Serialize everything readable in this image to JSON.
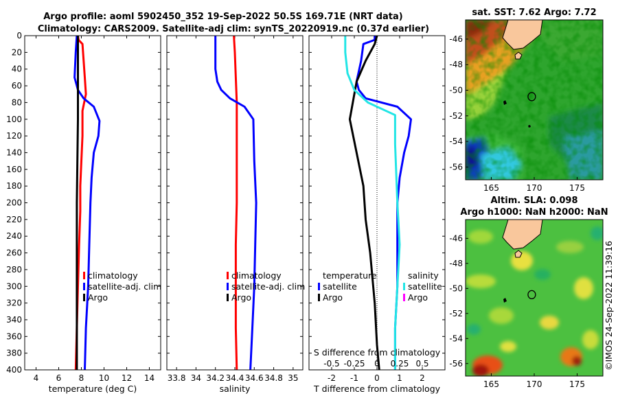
{
  "figure": {
    "title_line1": "Argo profile: aoml 5902450_352 19-Sep-2022 50.5S 169.71E (NRT data)",
    "title_line2": "Climatology: CARS2009. Satellite-adj clim: synTS_20220919.nc (0.37d earlier)",
    "credit": "©IMOS 24-Sep-2022 11:39:16"
  },
  "colors": {
    "climatology": "#ff0000",
    "satellite": "#0000ff",
    "argo": "#000000",
    "sal_satellite": "#22e5e5",
    "sal_argo": "#ff00ff"
  },
  "chart_data": [
    {
      "type": "line",
      "id": "temperature",
      "xlabel": "temperature (deg C)",
      "ylabel": "",
      "xlim": [
        3,
        15
      ],
      "ylim": [
        0,
        400
      ],
      "xticks": [
        4,
        6,
        8,
        10,
        12,
        14
      ],
      "yticks": [
        0,
        20,
        40,
        60,
        80,
        100,
        120,
        140,
        160,
        180,
        200,
        220,
        240,
        260,
        280,
        300,
        320,
        340,
        360,
        380,
        400
      ],
      "legend": [
        "climatology",
        "satellite-adj. clim",
        "Argo"
      ],
      "series": [
        {
          "name": "climatology",
          "color": "climatology",
          "points": [
            [
              7.7,
              0
            ],
            [
              7.75,
              5
            ],
            [
              8.1,
              10
            ],
            [
              8.2,
              30
            ],
            [
              8.3,
              50
            ],
            [
              8.4,
              70
            ],
            [
              8.1,
              90
            ],
            [
              8.1,
              120
            ],
            [
              8.0,
              150
            ],
            [
              7.9,
              180
            ],
            [
              7.9,
              210
            ],
            [
              7.8,
              250
            ],
            [
              7.7,
              300
            ],
            [
              7.6,
              350
            ],
            [
              7.5,
              400
            ]
          ]
        },
        {
          "name": "satellite-adj. clim",
          "color": "satellite",
          "points": [
            [
              7.6,
              0
            ],
            [
              7.5,
              20
            ],
            [
              7.4,
              50
            ],
            [
              7.6,
              60
            ],
            [
              7.7,
              65
            ],
            [
              8.2,
              75
            ],
            [
              9.1,
              85
            ],
            [
              9.6,
              102
            ],
            [
              9.5,
              120
            ],
            [
              9.1,
              140
            ],
            [
              8.9,
              170
            ],
            [
              8.8,
              200
            ],
            [
              8.7,
              250
            ],
            [
              8.6,
              300
            ],
            [
              8.4,
              350
            ],
            [
              8.3,
              400
            ]
          ]
        },
        {
          "name": "Argo",
          "color": "argo",
          "points": [
            [
              7.7,
              0
            ],
            [
              7.7,
              100
            ],
            [
              7.6,
              200
            ],
            [
              7.6,
              300
            ],
            [
              7.6,
              400
            ]
          ]
        }
      ]
    },
    {
      "type": "line",
      "id": "salinity",
      "xlabel": "salinity",
      "xlim": [
        33.7,
        35.1
      ],
      "ylim": [
        0,
        400
      ],
      "xticks": [
        33.8,
        34,
        34.2,
        34.4,
        34.6,
        34.8,
        35
      ],
      "legend": [
        "climatology",
        "satellite-adj. clim",
        "Argo"
      ],
      "series": [
        {
          "name": "climatology",
          "color": "climatology",
          "points": [
            [
              34.39,
              0
            ],
            [
              34.4,
              20
            ],
            [
              34.41,
              50
            ],
            [
              34.42,
              80
            ],
            [
              34.42,
              100
            ],
            [
              34.42,
              150
            ],
            [
              34.42,
              200
            ],
            [
              34.41,
              250
            ],
            [
              34.41,
              300
            ],
            [
              34.41,
              350
            ],
            [
              34.42,
              400
            ]
          ]
        },
        {
          "name": "satellite-adj. clim",
          "color": "satellite",
          "points": [
            [
              34.2,
              0
            ],
            [
              34.2,
              40
            ],
            [
              34.22,
              55
            ],
            [
              34.26,
              65
            ],
            [
              34.35,
              75
            ],
            [
              34.5,
              85
            ],
            [
              34.59,
              100
            ],
            [
              34.6,
              150
            ],
            [
              34.62,
              200
            ],
            [
              34.61,
              250
            ],
            [
              34.6,
              300
            ],
            [
              34.58,
              350
            ],
            [
              34.56,
              400
            ]
          ]
        },
        {
          "name": "Argo",
          "color": "argo",
          "points": []
        }
      ]
    },
    {
      "type": "line",
      "id": "difference",
      "xlabel": "T difference from climatology",
      "xlabel_top": "S difference from climatology",
      "xlim": [
        -3,
        3
      ],
      "ylim": [
        0,
        400
      ],
      "xticks": [
        -2,
        -1,
        0,
        1,
        2
      ],
      "s_ticks": [
        -0.5,
        -0.25,
        0,
        0.25,
        0.5
      ],
      "s_tick_labels": [
        "-0.5",
        "-0.25",
        "0",
        "0.25",
        "0.5"
      ],
      "legend_left_title": "temperature",
      "legend_right_title": "salinity",
      "legend_left": [
        "satellite",
        "Argo"
      ],
      "legend_right": [
        "satellite",
        "Argo"
      ],
      "series": [
        {
          "name": "T satellite",
          "color": "satellite",
          "points": [
            [
              -0.1,
              0
            ],
            [
              -0.1,
              5
            ],
            [
              -0.6,
              10
            ],
            [
              -0.7,
              30
            ],
            [
              -0.9,
              55
            ],
            [
              -0.8,
              65
            ],
            [
              -0.5,
              75
            ],
            [
              0.9,
              85
            ],
            [
              1.5,
              100
            ],
            [
              1.4,
              120
            ],
            [
              1.2,
              140
            ],
            [
              1.0,
              170
            ],
            [
              0.9,
              200
            ],
            [
              0.9,
              250
            ],
            [
              0.9,
              300
            ],
            [
              0.8,
              350
            ],
            [
              0.8,
              400
            ]
          ]
        },
        {
          "name": "T Argo",
          "color": "argo",
          "points": [
            [
              0,
              0
            ],
            [
              -0.1,
              10
            ],
            [
              -0.5,
              30
            ],
            [
              -0.9,
              55
            ],
            [
              -1.0,
              70
            ],
            [
              -1.2,
              100
            ],
            [
              -0.9,
              140
            ],
            [
              -0.6,
              180
            ],
            [
              -0.5,
              220
            ],
            [
              -0.3,
              260
            ],
            [
              -0.1,
              320
            ],
            [
              0,
              370
            ],
            [
              0.1,
              400
            ]
          ]
        },
        {
          "name": "S satellite",
          "color": "sal_satellite",
          "points": [
            [
              -1.4,
              0
            ],
            [
              -1.4,
              20
            ],
            [
              -1.3,
              45
            ],
            [
              -1.0,
              65
            ],
            [
              -0.4,
              80
            ],
            [
              0.8,
              95
            ],
            [
              0.8,
              130
            ],
            [
              0.9,
              200
            ],
            [
              1.0,
              250
            ],
            [
              0.9,
              300
            ],
            [
              0.8,
              350
            ],
            [
              0.8,
              400
            ]
          ]
        },
        {
          "name": "S Argo",
          "color": "sal_argo",
          "points": []
        }
      ]
    },
    {
      "type": "heatmap",
      "id": "sst_map",
      "title": "sat. SST: 7.62 Argo: 7.72",
      "xlim": [
        162,
        178
      ],
      "ylim": [
        -57,
        -44.5
      ],
      "xticks": [
        165,
        170,
        175
      ],
      "yticks": [
        -46,
        -48,
        -50,
        -52,
        -54,
        -56
      ],
      "float": {
        "lon": 169.71,
        "lat": -50.5
      }
    },
    {
      "type": "heatmap",
      "id": "sla_map",
      "title_line1": "Altim. SLA: 0.098",
      "title_line2": "Argo h1000: NaN h2000: NaN",
      "xlim": [
        162,
        178
      ],
      "ylim": [
        -57,
        -44.5
      ],
      "xticks": [
        165,
        170,
        175
      ],
      "yticks": [
        -46,
        -48,
        -50,
        -52,
        -54,
        -56
      ],
      "float": {
        "lon": 169.71,
        "lat": -50.5
      }
    }
  ]
}
